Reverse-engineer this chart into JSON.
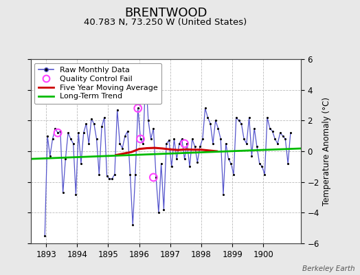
{
  "title": "BRENTWOOD",
  "subtitle": "40.783 N, 73.250 W (United States)",
  "ylabel": "Temperature Anomaly (°C)",
  "credit": "Berkeley Earth",
  "xlim": [
    1892.5,
    1901.2
  ],
  "ylim": [
    -6,
    6
  ],
  "xticks": [
    1893,
    1894,
    1895,
    1896,
    1897,
    1898,
    1899,
    1900
  ],
  "yticks": [
    -6,
    -4,
    -2,
    0,
    2,
    4,
    6
  ],
  "bg_color": "#e8e8e8",
  "plot_bg_color": "#ffffff",
  "raw_x": [
    1892.958,
    1893.042,
    1893.125,
    1893.208,
    1893.292,
    1893.375,
    1893.458,
    1893.542,
    1893.625,
    1893.708,
    1893.792,
    1893.875,
    1893.958,
    1894.042,
    1894.125,
    1894.208,
    1894.292,
    1894.375,
    1894.458,
    1894.542,
    1894.625,
    1894.708,
    1894.792,
    1894.875,
    1894.958,
    1895.042,
    1895.125,
    1895.208,
    1895.292,
    1895.375,
    1895.458,
    1895.542,
    1895.625,
    1895.708,
    1895.792,
    1895.875,
    1895.958,
    1896.042,
    1896.125,
    1896.208,
    1896.292,
    1896.375,
    1896.458,
    1896.542,
    1896.625,
    1896.708,
    1896.792,
    1896.875,
    1896.958,
    1897.042,
    1897.125,
    1897.208,
    1897.292,
    1897.375,
    1897.458,
    1897.542,
    1897.625,
    1897.708,
    1897.792,
    1897.875,
    1897.958,
    1898.042,
    1898.125,
    1898.208,
    1898.292,
    1898.375,
    1898.458,
    1898.542,
    1898.625,
    1898.708,
    1898.792,
    1898.875,
    1898.958,
    1899.042,
    1899.125,
    1899.208,
    1899.292,
    1899.375,
    1899.458,
    1899.542,
    1899.625,
    1899.708,
    1899.792,
    1899.875,
    1899.958,
    1900.042,
    1900.125,
    1900.208,
    1900.292,
    1900.375,
    1900.458,
    1900.542,
    1900.625,
    1900.708,
    1900.792,
    1900.875
  ],
  "raw_y": [
    -5.5,
    1.0,
    -0.3,
    0.8,
    1.5,
    1.2,
    1.3,
    -2.7,
    -0.5,
    1.2,
    0.8,
    0.5,
    -2.8,
    1.2,
    -0.8,
    1.2,
    1.8,
    0.5,
    2.1,
    1.8,
    0.8,
    -1.5,
    1.6,
    2.2,
    -1.6,
    -1.8,
    -1.8,
    -1.5,
    2.7,
    0.5,
    0.2,
    1.0,
    1.3,
    -1.5,
    -4.8,
    -1.5,
    2.8,
    0.8,
    0.5,
    5.0,
    2.0,
    0.8,
    1.5,
    -1.7,
    -4.0,
    -0.8,
    -3.8,
    0.5,
    0.7,
    -1.0,
    0.8,
    -0.5,
    0.5,
    0.8,
    -0.5,
    0.5,
    -1.0,
    0.8,
    0.3,
    -0.7,
    0.3,
    0.8,
    2.8,
    2.2,
    1.8,
    0.5,
    2.0,
    1.5,
    0.8,
    -2.8,
    0.5,
    -0.5,
    -0.8,
    -1.5,
    2.2,
    2.0,
    1.8,
    0.8,
    0.5,
    2.2,
    -0.3,
    1.5,
    0.3,
    -0.8,
    -1.0,
    -1.5,
    2.2,
    1.5,
    1.3,
    0.8,
    0.5,
    1.2,
    1.0,
    0.8,
    -0.8,
    1.2
  ],
  "qc_fail_x": [
    1893.375,
    1895.958,
    1896.042,
    1896.458,
    1897.458
  ],
  "qc_fail_y": [
    1.2,
    2.8,
    0.8,
    -1.7,
    0.5
  ],
  "moving_avg_x": [
    1895.25,
    1895.5,
    1895.75,
    1896.0,
    1896.25,
    1896.5,
    1896.75,
    1897.0,
    1897.25,
    1897.5,
    1897.75,
    1898.0,
    1898.25,
    1898.5
  ],
  "moving_avg_y": [
    -0.25,
    -0.15,
    -0.05,
    0.15,
    0.2,
    0.22,
    0.18,
    0.12,
    0.08,
    0.12,
    0.1,
    0.1,
    0.05,
    0.0
  ],
  "trend_x": [
    1892.5,
    1901.2
  ],
  "trend_y": [
    -0.5,
    0.18
  ],
  "raw_line_color": "#5555cc",
  "dot_color": "#000000",
  "qc_color": "#ff44ff",
  "ma_color": "#cc0000",
  "trend_color": "#00bb00",
  "grid_color": "#bbbbbb",
  "title_fontsize": 13,
  "subtitle_fontsize": 9.5,
  "legend_fontsize": 8,
  "tick_fontsize": 8.5,
  "ylabel_fontsize": 8.5
}
